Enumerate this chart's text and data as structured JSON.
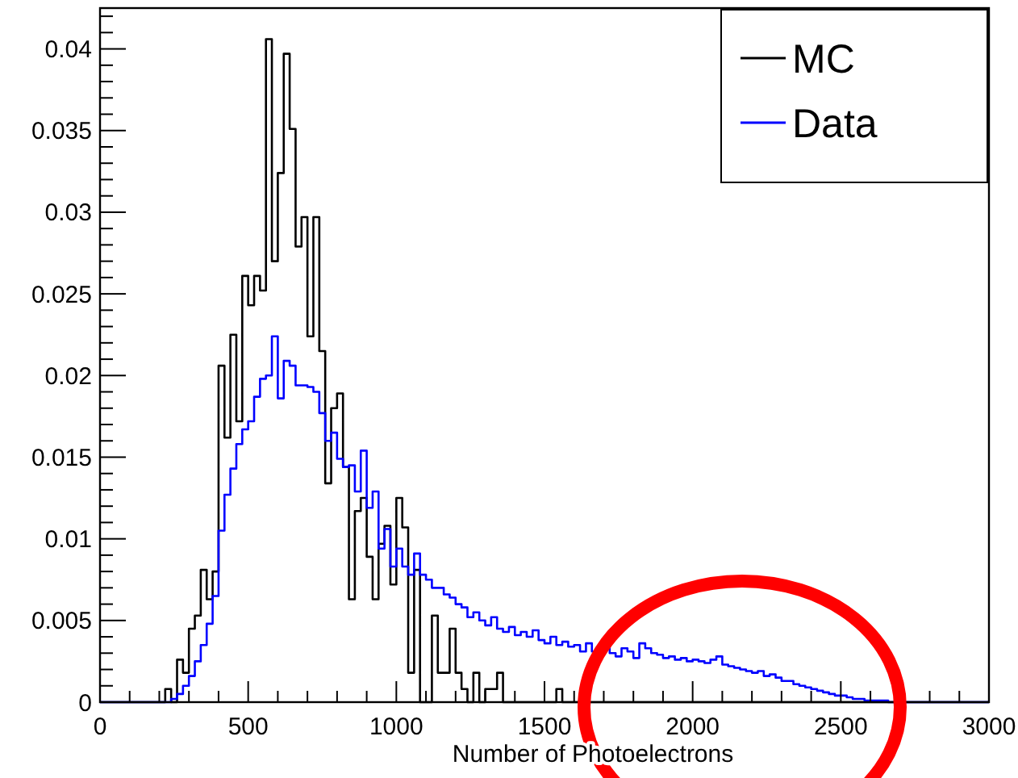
{
  "chart_data": {
    "type": "histogram",
    "xlabel": "Number of Photoelectrons",
    "bins": [
      0,
      20,
      40,
      60,
      80,
      100,
      120,
      140,
      160,
      180,
      200,
      220,
      240,
      260,
      280,
      300,
      320,
      340,
      360,
      380,
      400,
      420,
      440,
      460,
      480,
      500,
      520,
      540,
      560,
      580,
      600,
      620,
      640,
      660,
      680,
      700,
      720,
      740,
      760,
      780,
      800,
      820,
      840,
      860,
      880,
      900,
      920,
      940,
      960,
      980,
      1000,
      1020,
      1040,
      1060,
      1080,
      1100,
      1120,
      1140,
      1160,
      1180,
      1200,
      1220,
      1240,
      1260,
      1280,
      1300,
      1320,
      1340,
      1360,
      1380,
      1400,
      1420,
      1440,
      1460,
      1480,
      1500,
      1520,
      1540,
      1560,
      1580,
      1600,
      1620,
      1640,
      1660,
      1680,
      1700,
      1720,
      1740,
      1760,
      1780,
      1800,
      1820,
      1840,
      1860,
      1880,
      1900,
      1920,
      1940,
      1960,
      1980,
      2000,
      2020,
      2040,
      2060,
      2080,
      2100,
      2120,
      2140,
      2160,
      2180,
      2200,
      2220,
      2240,
      2260,
      2280,
      2300,
      2320,
      2340,
      2360,
      2380,
      2400,
      2420,
      2440,
      2460,
      2480,
      2500,
      2520,
      2540,
      2560,
      2580,
      2600,
      2620,
      2640,
      2660,
      2680,
      2700,
      2720,
      2740,
      2760,
      2780,
      2800,
      2820,
      2840,
      2860,
      2880,
      2900,
      2920,
      2940,
      2960,
      2980,
      3000
    ],
    "series": [
      {
        "name": "MC",
        "color": "#000000",
        "values": [
          0,
          0,
          0,
          0,
          0,
          0,
          0,
          0,
          0,
          0,
          0,
          0.0008,
          0,
          0.0026,
          0.0018,
          0.0045,
          0.0053,
          0.0081,
          0.0063,
          0.008,
          0.0206,
          0.0162,
          0.0225,
          0.0172,
          0.0261,
          0.0243,
          0.0261,
          0.0252,
          0.0406,
          0.027,
          0.0324,
          0.0397,
          0.0351,
          0.0279,
          0.0297,
          0.0224,
          0.0297,
          0.0215,
          0.0134,
          0.018,
          0.0189,
          0.0144,
          0.0063,
          0.0117,
          0.0125,
          0.0089,
          0.0063,
          0.0097,
          0.0108,
          0.0072,
          0.0125,
          0.0107,
          0.0018,
          0.0081,
          0,
          0,
          0.0053,
          0.0018,
          0.0018,
          0.0045,
          0.0018,
          0.0008,
          0,
          0.0018,
          0,
          0.0008,
          0.0008,
          0.0018,
          0,
          0,
          0,
          0,
          0,
          0,
          0,
          0,
          0,
          0.0008,
          0,
          0,
          0,
          0,
          0,
          0,
          0,
          0,
          0,
          0,
          0,
          0,
          0,
          0,
          0,
          0,
          0,
          0,
          0,
          0,
          0,
          0,
          0,
          0,
          0,
          0,
          0,
          0,
          0,
          0,
          0,
          0,
          0,
          0,
          0,
          0,
          0,
          0,
          0,
          0,
          0,
          0,
          0,
          0,
          0,
          0,
          0,
          0,
          0,
          0,
          0,
          0,
          0,
          0,
          0,
          0,
          0,
          0,
          0,
          0,
          0,
          0,
          0,
          0,
          0,
          0,
          0,
          0,
          0,
          0,
          0,
          0
        ]
      },
      {
        "name": "Data",
        "color": "#0000ff",
        "values": [
          0,
          0,
          0,
          0,
          0,
          0,
          0,
          0,
          0,
          0,
          0,
          0,
          0.0002,
          0.0005,
          0.001,
          0.0016,
          0.0025,
          0.0035,
          0.0048,
          0.0065,
          0.0105,
          0.0127,
          0.0143,
          0.0158,
          0.0167,
          0.0172,
          0.0187,
          0.0198,
          0.02,
          0.0224,
          0.0186,
          0.0209,
          0.0206,
          0.0194,
          0.0194,
          0.0193,
          0.019,
          0.0177,
          0.016,
          0.0165,
          0.0149,
          0.0144,
          0.0145,
          0.0129,
          0.0154,
          0.0119,
          0.0129,
          0.0094,
          0.0106,
          0.0083,
          0.0094,
          0.0083,
          0.0078,
          0.0091,
          0.0078,
          0.0075,
          0.007,
          0.007,
          0.0066,
          0.0064,
          0.006,
          0.0058,
          0.0052,
          0.0055,
          0.005,
          0.0047,
          0.0052,
          0.0045,
          0.0043,
          0.0046,
          0.0041,
          0.0043,
          0.004,
          0.0044,
          0.0038,
          0.0036,
          0.004,
          0.0035,
          0.0037,
          0.0034,
          0.0035,
          0.0031,
          0.0036,
          0.0031,
          0.0029,
          0.0034,
          0.003,
          0.0028,
          0.0033,
          0.0031,
          0.0027,
          0.0036,
          0.0033,
          0.003,
          0.0029,
          0.0027,
          0.0028,
          0.0026,
          0.0027,
          0.0025,
          0.0026,
          0.0025,
          0.0024,
          0.0026,
          0.0028,
          0.0023,
          0.0022,
          0.0021,
          0.002,
          0.0019,
          0.0018,
          0.0019,
          0.0016,
          0.0017,
          0.0015,
          0.0013,
          0.0013,
          0.0011,
          0.001,
          0.0009,
          0.0008,
          0.0007,
          0.0006,
          0.0005,
          0.0004,
          0.0004,
          0.0003,
          0.0002,
          0.0002,
          0.0001,
          0.0001,
          0.0001,
          0.0001,
          0,
          0,
          0,
          0,
          0,
          0,
          0,
          0,
          0,
          0,
          0,
          0,
          0,
          0,
          0,
          0,
          0
        ]
      }
    ],
    "xlim": [
      0,
      3000
    ],
    "ylim": [
      0,
      0.0425
    ],
    "xticks": [
      0,
      {
        "value": 100,
        "label": null
      },
      {
        "value": 200,
        "label": null
      },
      {
        "value": 300,
        "label": null
      },
      {
        "value": 400,
        "label": null
      },
      500,
      {
        "value": 600,
        "label": null
      },
      {
        "value": 700,
        "label": null
      },
      {
        "value": 800,
        "label": null
      },
      {
        "value": 900,
        "label": null
      },
      1000,
      {
        "value": 1100,
        "label": null
      },
      {
        "value": 1200,
        "label": null
      },
      {
        "value": 1300,
        "label": null
      },
      {
        "value": 1400,
        "label": null
      },
      1500,
      {
        "value": 1600,
        "label": null
      },
      {
        "value": 1700,
        "label": null
      },
      {
        "value": 1800,
        "label": null
      },
      {
        "value": 1900,
        "label": null
      },
      2000,
      {
        "value": 2100,
        "label": null
      },
      {
        "value": 2200,
        "label": null
      },
      {
        "value": 2300,
        "label": null
      },
      {
        "value": 2400,
        "label": null
      },
      2500,
      {
        "value": 2600,
        "label": null
      },
      {
        "value": 2700,
        "label": null
      },
      {
        "value": 2800,
        "label": null
      },
      {
        "value": 2900,
        "label": null
      },
      3000
    ],
    "yticks": [
      0,
      {
        "value": 0.001,
        "label": null
      },
      {
        "value": 0.002,
        "label": null
      },
      {
        "value": 0.003,
        "label": null
      },
      {
        "value": 0.004,
        "label": null
      },
      0.005,
      {
        "value": 0.006,
        "label": null
      },
      {
        "value": 0.007,
        "label": null
      },
      {
        "value": 0.008,
        "label": null
      },
      {
        "value": 0.009,
        "label": null
      },
      0.01,
      {
        "value": 0.011,
        "label": null
      },
      {
        "value": 0.012,
        "label": null
      },
      {
        "value": 0.013,
        "label": null
      },
      {
        "value": 0.014,
        "label": null
      },
      0.015,
      {
        "value": 0.016,
        "label": null
      },
      {
        "value": 0.017,
        "label": null
      },
      {
        "value": 0.018,
        "label": null
      },
      {
        "value": 0.019,
        "label": null
      },
      0.02,
      {
        "value": 0.021,
        "label": null
      },
      {
        "value": 0.022,
        "label": null
      },
      {
        "value": 0.023,
        "label": null
      },
      {
        "value": 0.024,
        "label": null
      },
      0.025,
      {
        "value": 0.026,
        "label": null
      },
      {
        "value": 0.027,
        "label": null
      },
      {
        "value": 0.028,
        "label": null
      },
      {
        "value": 0.029,
        "label": null
      },
      0.03,
      {
        "value": 0.031,
        "label": null
      },
      {
        "value": 0.032,
        "label": null
      },
      {
        "value": 0.033,
        "label": null
      },
      {
        "value": 0.034,
        "label": null
      },
      0.035,
      {
        "value": 0.036,
        "label": null
      },
      {
        "value": 0.037,
        "label": null
      },
      {
        "value": 0.038,
        "label": null
      },
      {
        "value": 0.039,
        "label": null
      },
      0.04,
      {
        "value": 0.041,
        "label": null
      },
      {
        "value": 0.042,
        "label": null
      }
    ],
    "legend": "top right"
  }
}
